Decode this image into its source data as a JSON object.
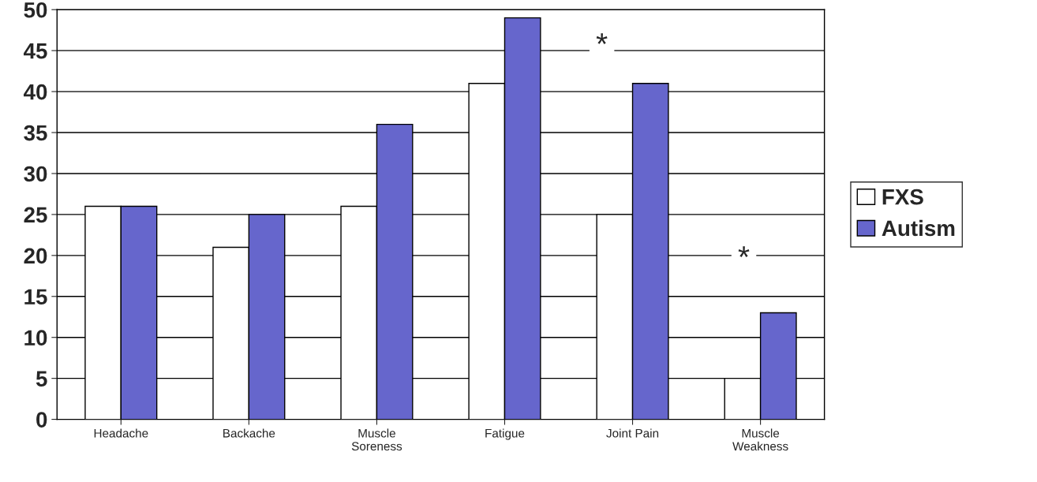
{
  "chart_data": {
    "type": "bar",
    "categories": [
      "Headache",
      "Backache",
      "Muscle\nSoreness",
      "Fatigue",
      "Joint Pain",
      "Muscle\nWeakness"
    ],
    "series": [
      {
        "name": "FXS",
        "color": "#ffffff",
        "values": [
          26,
          21,
          26,
          41,
          25,
          5
        ]
      },
      {
        "name": "Autism",
        "color": "#6666cc",
        "values": [
          26,
          25,
          36,
          49,
          41,
          13
        ]
      }
    ],
    "ylim": [
      0,
      50
    ],
    "yticks": [
      0,
      5,
      10,
      15,
      20,
      25,
      30,
      35,
      40,
      45,
      50
    ],
    "grid": "y",
    "legend": "right",
    "annotations": [
      "*",
      "*"
    ]
  }
}
